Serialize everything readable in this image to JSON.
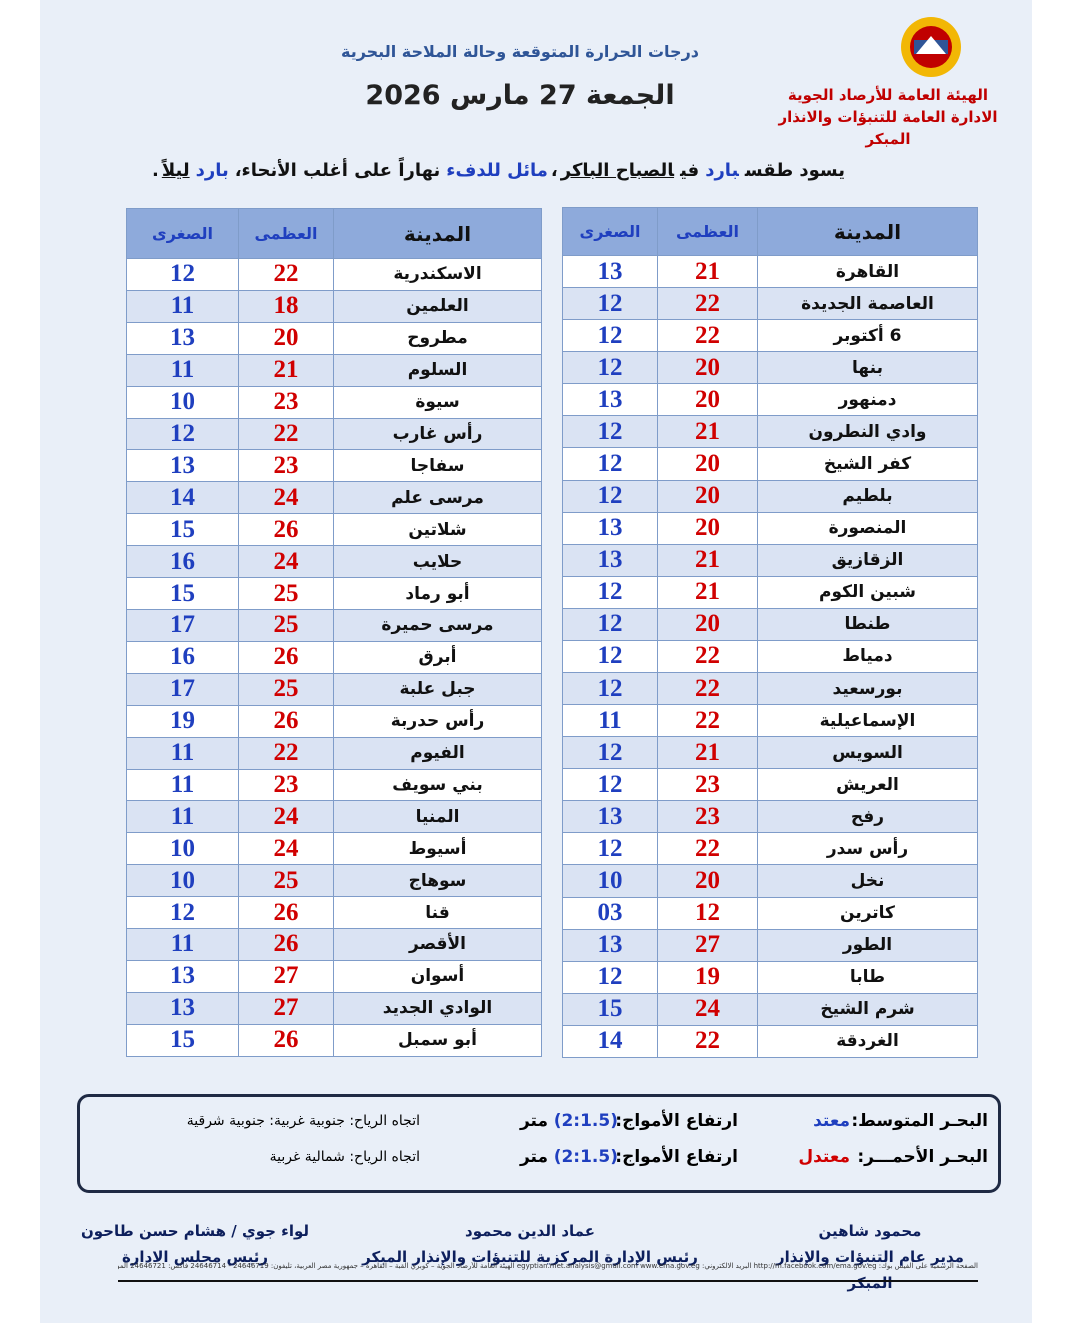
{
  "header": {
    "org": "الهيئة العامة للأرصاد الجوية",
    "department": "الادارة العامة للتنبؤات والانذار المبكر",
    "subtitle": "درجات الحرارة المتوقعة وحالة الملاحة البحرية",
    "date": "الجمعة 27 مارس 2026"
  },
  "summary": [
    "يسود طقس",
    "بارد",
    "في",
    "الصباح الباكر",
    "،",
    "مائل للدفء",
    "نهاراً على أغلب الأنحاء،",
    "بارد",
    "ليلاً",
    "."
  ],
  "tables": [
    {
      "columns": [
        "المدينة",
        "العظمى",
        "الصغرى"
      ],
      "rows": [
        [
          "القاهرة",
          21,
          13
        ],
        [
          "العاصمة الجديدة",
          22,
          12
        ],
        [
          "6 أكتوبر",
          22,
          12
        ],
        [
          "بنها",
          20,
          12
        ],
        [
          "دمنهور",
          20,
          13
        ],
        [
          "وادي النطرون",
          21,
          12
        ],
        [
          "كفر الشيخ",
          20,
          12
        ],
        [
          "بلطيم",
          20,
          12
        ],
        [
          "المنصورة",
          20,
          13
        ],
        [
          "الزقازيق",
          21,
          13
        ],
        [
          "شبين الكوم",
          21,
          12
        ],
        [
          "طنطا",
          20,
          12
        ],
        [
          "دمياط",
          22,
          12
        ],
        [
          "بورسعيد",
          22,
          12
        ],
        [
          "الإسماعيلية",
          22,
          11
        ],
        [
          "السويس",
          21,
          12
        ],
        [
          "العريش",
          23,
          12
        ],
        [
          "رفح",
          23,
          13
        ],
        [
          "رأس سدر",
          22,
          12
        ],
        [
          "نخل",
          20,
          10
        ],
        [
          "كاترين",
          12,
          "03"
        ],
        [
          "الطور",
          27,
          13
        ],
        [
          "طابا",
          19,
          12
        ],
        [
          "شرم الشيخ",
          24,
          15
        ],
        [
          "الغردقة",
          22,
          14
        ]
      ]
    },
    {
      "columns": [
        "المدينة",
        "العظمى",
        "الصغرى"
      ],
      "rows": [
        [
          "الاسكندرية",
          22,
          12
        ],
        [
          "العلمين",
          18,
          11
        ],
        [
          "مطروح",
          20,
          13
        ],
        [
          "السلوم",
          21,
          11
        ],
        [
          "سيوة",
          23,
          10
        ],
        [
          "رأس غارب",
          22,
          12
        ],
        [
          "سفاجا",
          23,
          13
        ],
        [
          "مرسى علم",
          24,
          14
        ],
        [
          "شلاتين",
          26,
          15
        ],
        [
          "حلايب",
          24,
          16
        ],
        [
          "أبو رماد",
          25,
          15
        ],
        [
          "مرسى حميرة",
          25,
          17
        ],
        [
          "أبرق",
          26,
          16
        ],
        [
          "جبل علبة",
          25,
          17
        ],
        [
          "رأس حدربة",
          26,
          19
        ],
        [
          "الفيوم",
          22,
          11
        ],
        [
          "بني سويف",
          23,
          11
        ],
        [
          "المنيا",
          24,
          11
        ],
        [
          "أسيوط",
          24,
          10
        ],
        [
          "سوهاج",
          25,
          10
        ],
        [
          "قنا",
          26,
          12
        ],
        [
          "الأقصر",
          26,
          11
        ],
        [
          "أسوان",
          27,
          13
        ],
        [
          "الوادي الجديد",
          27,
          13
        ],
        [
          "أبو سمبل",
          26,
          15
        ]
      ]
    }
  ],
  "marine": [
    {
      "sea": "البحـر المتوسط:",
      "state": "معتد",
      "waves_label": "ارتفاع الأمواج:",
      "waves": "(2:1.5)",
      "unit": "متر",
      "wind": "اتجاه الرياح: جنوبية غربية: جنوبية شرقية"
    },
    {
      "sea": "البحـر الأحمـــر:",
      "state": "معتدل",
      "waves_label": "ارتفاع الأمواج:",
      "waves": "(2:1.5)",
      "unit": "متر",
      "wind": "اتجاه الرياح: شمالية غربية"
    }
  ],
  "signatures": [
    {
      "name": "محمود شاهين",
      "title": "مدير عام التنبؤات والإنذار المبكر"
    },
    {
      "name": "عماد الدين محمود",
      "title": "رئيس الإدارة المركزية للتنبؤات والإنذار المبكر"
    },
    {
      "name": "لواء جوي / هشام حسن طاحون",
      "title": "رئيس مجلس الادارة"
    }
  ],
  "footer": "الصفحة الرسمية على الفيس بوك: http://m.facebook.com/ema.gov.eg  البريد الالكتروني: egyptian.met.analysis@gmail.com  www.ema.gov.eg  الهيئة العامة للأرصاد الجوية – كوبري القبة – القاهرة – جمهورية مصر العربية، تليفون: 24646719 - 24646714 فاكس: 24646721 الموقع الرسمي"
}
